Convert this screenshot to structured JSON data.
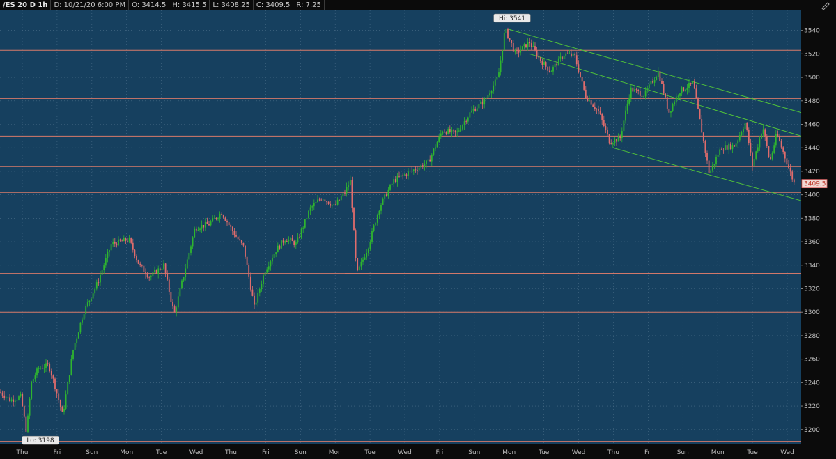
{
  "header": {
    "symbol": "/ES 20 D 1h",
    "date": "D: 10/21/20 6:00 PM",
    "open": "O: 3414.5",
    "high": "H: 3415.5",
    "low": "L: 3408.25",
    "close": "C: 3409.5",
    "range": "R: 7.25"
  },
  "colors": {
    "background": "#16405f",
    "up": "#2fb52f",
    "down": "#e06c6c",
    "level_line": "#d77a6a",
    "channel": "#4fbf3a",
    "grid": "#4c6f8a"
  },
  "annotations": {
    "hi_label": "Hi: 3541",
    "lo_label": "Lo: 3198",
    "last_price": "3409.5"
  },
  "chart_data": {
    "type": "candlestick",
    "ylim": [
      3188,
      3557
    ],
    "yticks": [
      3200,
      3220,
      3240,
      3260,
      3280,
      3300,
      3320,
      3340,
      3360,
      3380,
      3400,
      3420,
      3440,
      3460,
      3480,
      3500,
      3520,
      3540
    ],
    "xticks": [
      "Thu",
      "Fri",
      "Sun",
      "Mon",
      "Tue",
      "Wed",
      "Thu",
      "Fri",
      "Sun",
      "Mon",
      "Tue",
      "Wed",
      "Fri",
      "Sun",
      "Mon",
      "Tue",
      "Wed",
      "Thu",
      "Fri",
      "Sun",
      "Mon",
      "Tue",
      "Wed"
    ],
    "grid": true,
    "x_range": [
      0,
      1148
    ],
    "horizontal_levels": [
      3523,
      3482,
      3450,
      3424,
      3402,
      3333,
      3300,
      3190
    ],
    "swing_path": [
      [
        0,
        3232
      ],
      [
        15,
        3225
      ],
      [
        30,
        3228
      ],
      [
        38,
        3198
      ],
      [
        45,
        3240
      ],
      [
        55,
        3252
      ],
      [
        70,
        3255
      ],
      [
        80,
        3235
      ],
      [
        90,
        3212
      ],
      [
        105,
        3268
      ],
      [
        120,
        3300
      ],
      [
        140,
        3325
      ],
      [
        160,
        3358
      ],
      [
        185,
        3362
      ],
      [
        200,
        3340
      ],
      [
        215,
        3330
      ],
      [
        235,
        3340
      ],
      [
        250,
        3298
      ],
      [
        265,
        3335
      ],
      [
        280,
        3372
      ],
      [
        300,
        3375
      ],
      [
        318,
        3385
      ],
      [
        335,
        3368
      ],
      [
        350,
        3355
      ],
      [
        365,
        3304
      ],
      [
        380,
        3335
      ],
      [
        395,
        3352
      ],
      [
        410,
        3363
      ],
      [
        425,
        3358
      ],
      [
        445,
        3388
      ],
      [
        462,
        3398
      ],
      [
        480,
        3390
      ],
      [
        495,
        3402
      ],
      [
        503,
        3412
      ],
      [
        512,
        3332
      ],
      [
        528,
        3355
      ],
      [
        545,
        3390
      ],
      [
        565,
        3412
      ],
      [
        590,
        3420
      ],
      [
        615,
        3428
      ],
      [
        635,
        3455
      ],
      [
        655,
        3452
      ],
      [
        675,
        3470
      ],
      [
        695,
        3480
      ],
      [
        715,
        3500
      ],
      [
        725,
        3541
      ],
      [
        740,
        3520
      ],
      [
        760,
        3530
      ],
      [
        775,
        3515
      ],
      [
        790,
        3505
      ],
      [
        810,
        3520
      ],
      [
        825,
        3518
      ],
      [
        840,
        3485
      ],
      [
        860,
        3470
      ],
      [
        875,
        3445
      ],
      [
        890,
        3448
      ],
      [
        905,
        3490
      ],
      [
        925,
        3485
      ],
      [
        945,
        3505
      ],
      [
        960,
        3470
      ],
      [
        975,
        3488
      ],
      [
        995,
        3495
      ],
      [
        1010,
        3445
      ],
      [
        1018,
        3418
      ],
      [
        1035,
        3440
      ],
      [
        1055,
        3442
      ],
      [
        1070,
        3462
      ],
      [
        1080,
        3425
      ],
      [
        1095,
        3458
      ],
      [
        1105,
        3428
      ],
      [
        1115,
        3452
      ],
      [
        1128,
        3430
      ],
      [
        1140,
        3409.5
      ]
    ],
    "channel_lines": [
      {
        "from": [
          730,
          3541
        ],
        "to": [
          1150,
          3470
        ]
      },
      {
        "from": [
          760,
          3520
        ],
        "to": [
          1150,
          3450
        ]
      },
      {
        "from": [
          880,
          3440
        ],
        "to": [
          1150,
          3395
        ]
      }
    ],
    "short_level": {
      "from": [
        495,
        3333
      ],
      "to": [
        1150,
        3333
      ]
    },
    "level_from_tue": {
      "from": [
        505,
        3402
      ],
      "to": [
        1150,
        3402
      ]
    }
  }
}
